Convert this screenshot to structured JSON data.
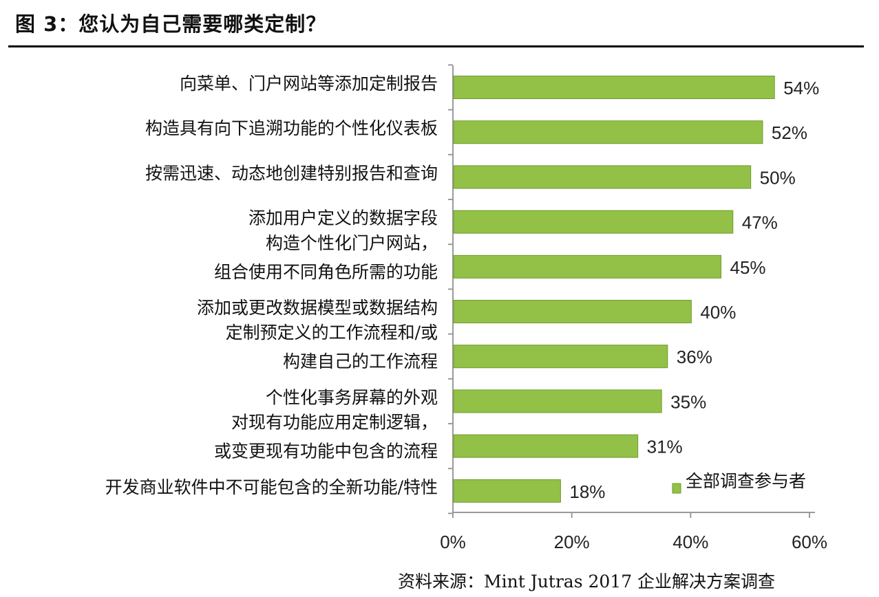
{
  "figure": {
    "title": "图 3：您认为自己需要哪类定制？",
    "source": "资料来源：Mint Jutras 2017 企业解决方案调查"
  },
  "chart_data": {
    "type": "bar",
    "orientation": "horizontal",
    "categories": [
      [
        "向菜单、门户网站等添加定制报告"
      ],
      [
        "构造具有向下追溯功能的个性化仪表板"
      ],
      [
        "按需迅速、动态地创建特别报告和查询"
      ],
      [
        "添加用户定义的数据字段"
      ],
      [
        "构造个性化门户网站，",
        "组合使用不同角色所需的功能"
      ],
      [
        "添加或更改数据模型或数据结构"
      ],
      [
        "定制预定义的工作流程和/或",
        "构建自己的工作流程"
      ],
      [
        "个性化事务屏幕的外观"
      ],
      [
        "对现有功能应用定制逻辑，",
        "或变更现有功能中包含的流程"
      ],
      [
        "开发商业软件中不可能包含的全新功能/特性"
      ]
    ],
    "series": [
      {
        "name": "全部调查参与者",
        "values": [
          54,
          52,
          50,
          47,
          45,
          40,
          36,
          35,
          31,
          18
        ],
        "value_labels": [
          "54%",
          "52%",
          "50%",
          "47%",
          "45%",
          "40%",
          "36%",
          "35%",
          "31%",
          "18%"
        ]
      }
    ],
    "xlim": [
      0,
      60
    ],
    "xticks": [
      0,
      20,
      40,
      60
    ],
    "xtick_labels": [
      "0%",
      "20%",
      "40%",
      "60%"
    ],
    "grid": false,
    "legend_position": "bottom-right",
    "colors": {
      "bar_fill": "#93c047",
      "bar_edge": "#6f9a2e",
      "axis": "#9a9a9a"
    }
  }
}
